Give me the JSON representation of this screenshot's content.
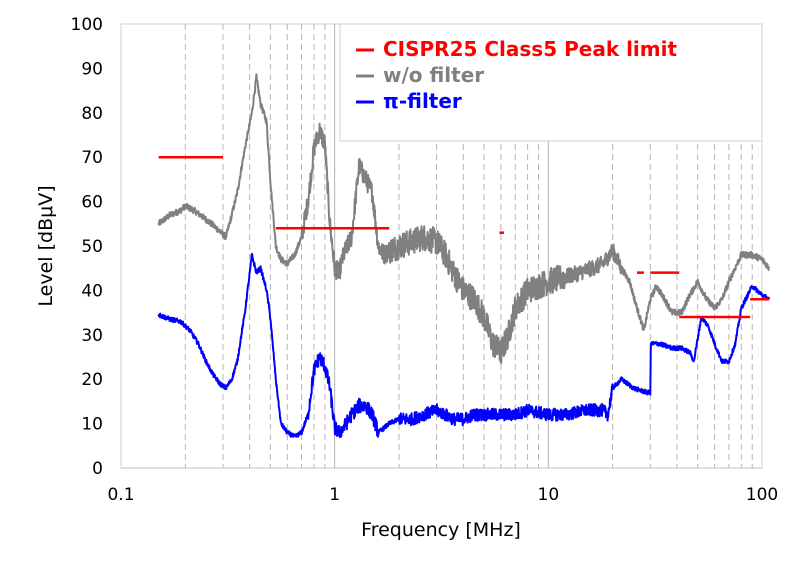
{
  "chart_data": {
    "type": "line",
    "xlabel": "Frequency [MHz]",
    "ylabel": "Level [dBμV]",
    "x_scale": "log",
    "xlim": [
      0.1,
      100
    ],
    "ylim": [
      0,
      100
    ],
    "x_ticks": [
      {
        "value": 0.1,
        "label": "0.1"
      },
      {
        "value": 1,
        "label": "1"
      },
      {
        "value": 10,
        "label": "10"
      },
      {
        "value": 100,
        "label": "100"
      }
    ],
    "y_ticks": [
      0,
      10,
      20,
      30,
      40,
      50,
      60,
      70,
      80,
      90,
      100
    ],
    "grid": {
      "vertical_minor_dashed": true,
      "horizontal": false
    },
    "legend": {
      "position": "top-right",
      "entries": [
        {
          "label": "CISPR25 Class5 Peak limit",
          "color": "#ff0000"
        },
        {
          "label": "w/o filter",
          "color": "#808080"
        },
        {
          "label": "π-filter",
          "color": "#0000ff"
        }
      ]
    },
    "series": [
      {
        "name": "CISPR25 Class5 Peak limit",
        "color": "#ff0000",
        "style": "segments",
        "segments": [
          {
            "x": [
              0.15,
              0.3
            ],
            "y": [
              70,
              70
            ]
          },
          {
            "x": [
              0.53,
              1.8
            ],
            "y": [
              54,
              54
            ]
          },
          {
            "x": [
              5.9,
              6.2
            ],
            "y": [
              53,
              53
            ]
          },
          {
            "x": [
              26,
              28
            ],
            "y": [
              44,
              44
            ]
          },
          {
            "x": [
              30,
              41
            ],
            "y": [
              44,
              44
            ]
          },
          {
            "x": [
              41,
              88
            ],
            "y": [
              34,
              34
            ]
          },
          {
            "x": [
              88,
              108
            ],
            "y": [
              38,
              38
            ]
          }
        ]
      },
      {
        "name": "w/o filter",
        "color": "#808080",
        "x": [
          0.15,
          0.17,
          0.19,
          0.2,
          0.22,
          0.25,
          0.28,
          0.31,
          0.33,
          0.35,
          0.38,
          0.41,
          0.43,
          0.45,
          0.48,
          0.5,
          0.53,
          0.56,
          0.6,
          0.65,
          0.7,
          0.75,
          0.8,
          0.85,
          0.9,
          0.95,
          1.0,
          1.05,
          1.1,
          1.2,
          1.3,
          1.4,
          1.5,
          1.6,
          1.7,
          1.8,
          2.0,
          2.3,
          2.6,
          3.0,
          3.3,
          3.6,
          4.0,
          4.5,
          5.0,
          5.5,
          6.0,
          6.5,
          7.0,
          8.0,
          9.0,
          10.0,
          12.0,
          14.0,
          16.0,
          18.0,
          20.0,
          22.0,
          24.0,
          26.0,
          28.0,
          30.0,
          32.0,
          35.0,
          38.0,
          42.0,
          46.0,
          50.0,
          55.0,
          60.0,
          65.0,
          70.0,
          80.0,
          90.0,
          100.0,
          108.0
        ],
        "y": [
          55,
          57,
          58,
          59,
          58,
          56,
          54,
          52,
          57,
          62,
          72,
          80,
          88,
          82,
          78,
          65,
          50,
          47,
          46,
          48,
          52,
          60,
          72,
          76,
          73,
          55,
          45,
          44,
          48,
          52,
          68,
          65,
          62,
          50,
          48,
          49,
          50,
          51,
          52,
          51,
          48,
          44,
          40,
          38,
          34,
          28,
          26,
          30,
          36,
          40,
          41,
          42,
          43,
          44,
          45,
          46,
          49,
          45,
          42,
          36,
          31,
          38,
          41,
          38,
          35,
          35,
          39,
          42,
          38,
          36,
          38,
          42,
          48,
          48,
          47,
          45
        ]
      },
      {
        "name": "π-filter",
        "color": "#0000ff",
        "x": [
          0.15,
          0.17,
          0.19,
          0.21,
          0.23,
          0.25,
          0.27,
          0.29,
          0.31,
          0.33,
          0.35,
          0.38,
          0.41,
          0.43,
          0.45,
          0.48,
          0.5,
          0.53,
          0.56,
          0.6,
          0.65,
          0.7,
          0.75,
          0.8,
          0.85,
          0.9,
          0.95,
          1.0,
          1.05,
          1.1,
          1.2,
          1.3,
          1.4,
          1.5,
          1.6,
          1.7,
          1.8,
          2.0,
          2.3,
          2.6,
          3.0,
          3.3,
          3.6,
          4.0,
          4.5,
          5.0,
          6.0,
          7.0,
          8.0,
          10.0,
          12.0,
          15.0,
          18.0,
          19.0,
          20.0,
          22.0,
          25.0,
          29.0,
          30.0,
          30.2,
          33.0,
          38.0,
          42.0,
          46.0,
          48.0,
          52.0,
          56.0,
          60.0,
          65.0,
          70.0,
          75.0,
          80.0,
          90.0,
          100.0,
          108.0
        ],
        "y": [
          34.5,
          33.5,
          33,
          31,
          28,
          24,
          21,
          19,
          18,
          20,
          24,
          35,
          48,
          44,
          45,
          40,
          34,
          20,
          10,
          8,
          7,
          8,
          12,
          22,
          25,
          23,
          18,
          9,
          8,
          9,
          12,
          14,
          14,
          12,
          8,
          9,
          10,
          11,
          11,
          12,
          13,
          12,
          11,
          11,
          12,
          12,
          12,
          12,
          13,
          12,
          12,
          13,
          13,
          12,
          18,
          20,
          18,
          17,
          17,
          28,
          28,
          27,
          27,
          26,
          24,
          34,
          32,
          28,
          24,
          24,
          28,
          36,
          41,
          39,
          38
        ]
      }
    ]
  }
}
